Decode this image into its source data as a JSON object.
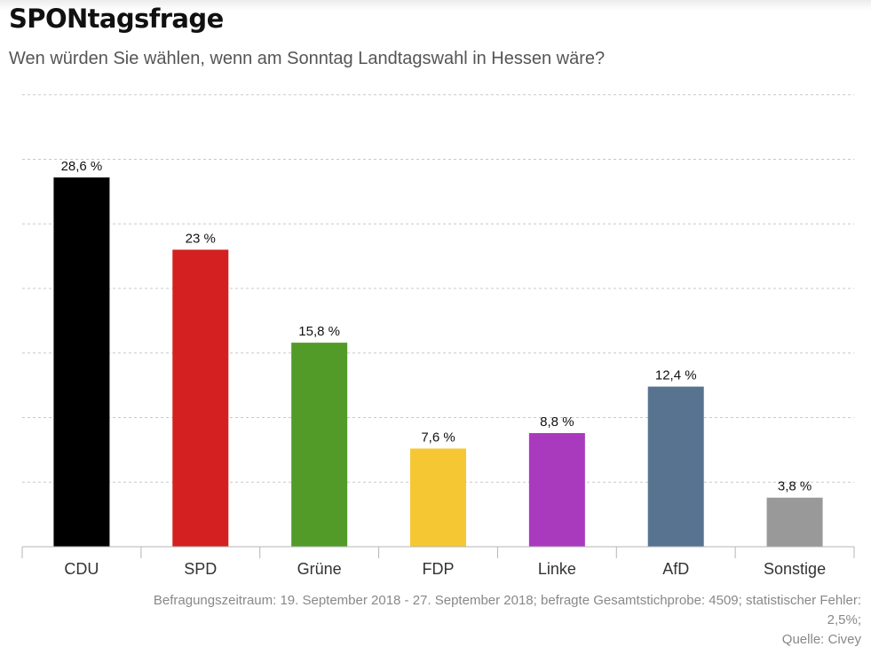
{
  "header": {
    "title": "SPONtagsfrage",
    "subtitle": "Wen würden Sie wählen, wenn am Sonntag Landtagswahl in Hessen wäre?"
  },
  "chart_data": {
    "type": "bar",
    "categories": [
      "CDU",
      "SPD",
      "Grüne",
      "FDP",
      "Linke",
      "AfD",
      "Sonstige"
    ],
    "values": [
      28.6,
      23,
      15.8,
      7.6,
      8.8,
      12.4,
      3.8
    ],
    "value_labels": [
      "28,6 %",
      "23 %",
      "15,8 %",
      "7,6 %",
      "8,8 %",
      "12,4 %",
      "3,8 %"
    ],
    "colors": [
      "#000000",
      "#d42020",
      "#529b28",
      "#f5c833",
      "#a93abe",
      "#587390",
      "#999999"
    ],
    "ylim": [
      0,
      35
    ],
    "y_gridline_step": 5,
    "grid": true,
    "gridline_style": "dashed",
    "xlabel": "",
    "ylabel": ""
  },
  "footer": {
    "note_line1": "Befragungszeitraum: 19. September 2018 - 27. September 2018; befragte Gesamtstichprobe: 4509; statistischer Fehler:",
    "note_line2": "2,5%;",
    "source": "Quelle: Civey"
  }
}
